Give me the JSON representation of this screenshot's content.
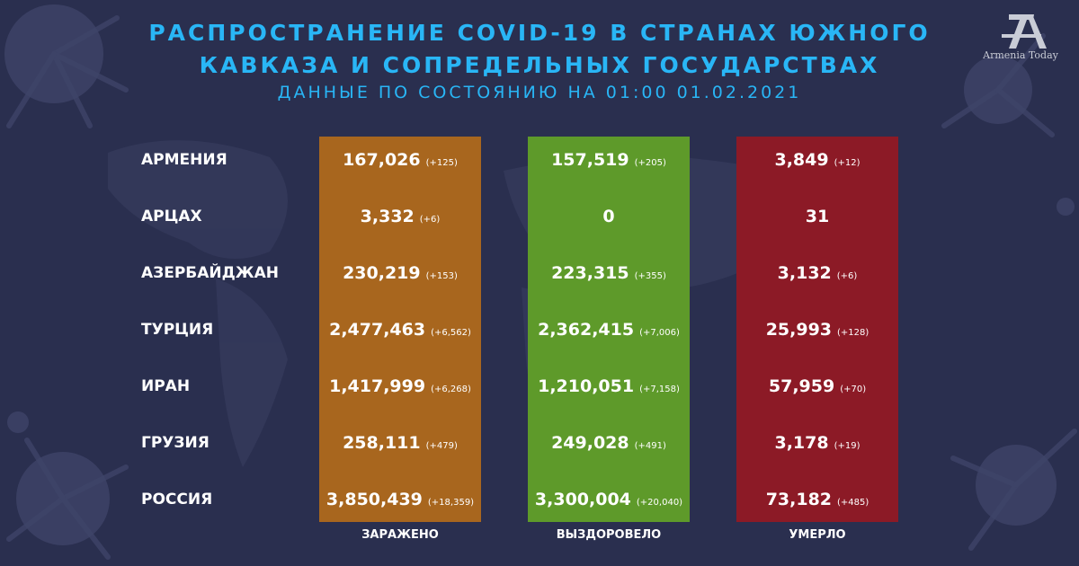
{
  "header": {
    "title_line1": "РАСПРОСТРАНЕНИЕ COVID-19 В СТРАНАХ ЮЖНОГО",
    "title_line2": "КАВКАЗА И СОПРЕДЕЛЬНЫХ ГОСУДАРСТВАХ",
    "subtitle": "ДАННЫЕ ПО СОСТОЯНИЮ НА 01:00  01.02.2021"
  },
  "logo": {
    "text": "Armenia Today",
    "icon": "armenia-today-logo-icon"
  },
  "columns": {
    "infected": "ЗАРАЖЕНО",
    "recovered": "ВЫЗДОРОВЕЛО",
    "died": "УМЕРЛО"
  },
  "colors": {
    "background": "#2a2f4f",
    "title": "#29b6f6",
    "infected": "#a8661e",
    "recovered": "#5e9a2a",
    "died": "#8c1a26"
  },
  "rows": [
    {
      "country": "АРМЕНИЯ",
      "infected": "167,026",
      "infected_delta": "(+125)",
      "recovered": "157,519",
      "recovered_delta": "(+205)",
      "died": "3,849",
      "died_delta": "(+12)"
    },
    {
      "country": "АРЦАХ",
      "infected": "3,332",
      "infected_delta": "(+6)",
      "recovered": "0",
      "recovered_delta": "",
      "died": "31",
      "died_delta": ""
    },
    {
      "country": "АЗЕРБАЙДЖАН",
      "infected": "230,219",
      "infected_delta": "(+153)",
      "recovered": "223,315",
      "recovered_delta": "(+355)",
      "died": "3,132",
      "died_delta": "(+6)"
    },
    {
      "country": "ТУРЦИЯ",
      "infected": "2,477,463",
      "infected_delta": "(+6,562)",
      "recovered": "2,362,415",
      "recovered_delta": "(+7,006)",
      "died": "25,993",
      "died_delta": "(+128)"
    },
    {
      "country": "ИРАН",
      "infected": "1,417,999",
      "infected_delta": "(+6,268)",
      "recovered": "1,210,051",
      "recovered_delta": "(+7,158)",
      "died": "57,959",
      "died_delta": "(+70)"
    },
    {
      "country": "ГРУЗИЯ",
      "infected": "258,111",
      "infected_delta": "(+479)",
      "recovered": "249,028",
      "recovered_delta": "(+491)",
      "died": "3,178",
      "died_delta": "(+19)"
    },
    {
      "country": "РОССИЯ",
      "infected": "3,850,439",
      "infected_delta": "(+18,359)",
      "recovered": "3,300,004",
      "recovered_delta": "(+20,040)",
      "died": "73,182",
      "died_delta": "(+485)"
    }
  ]
}
